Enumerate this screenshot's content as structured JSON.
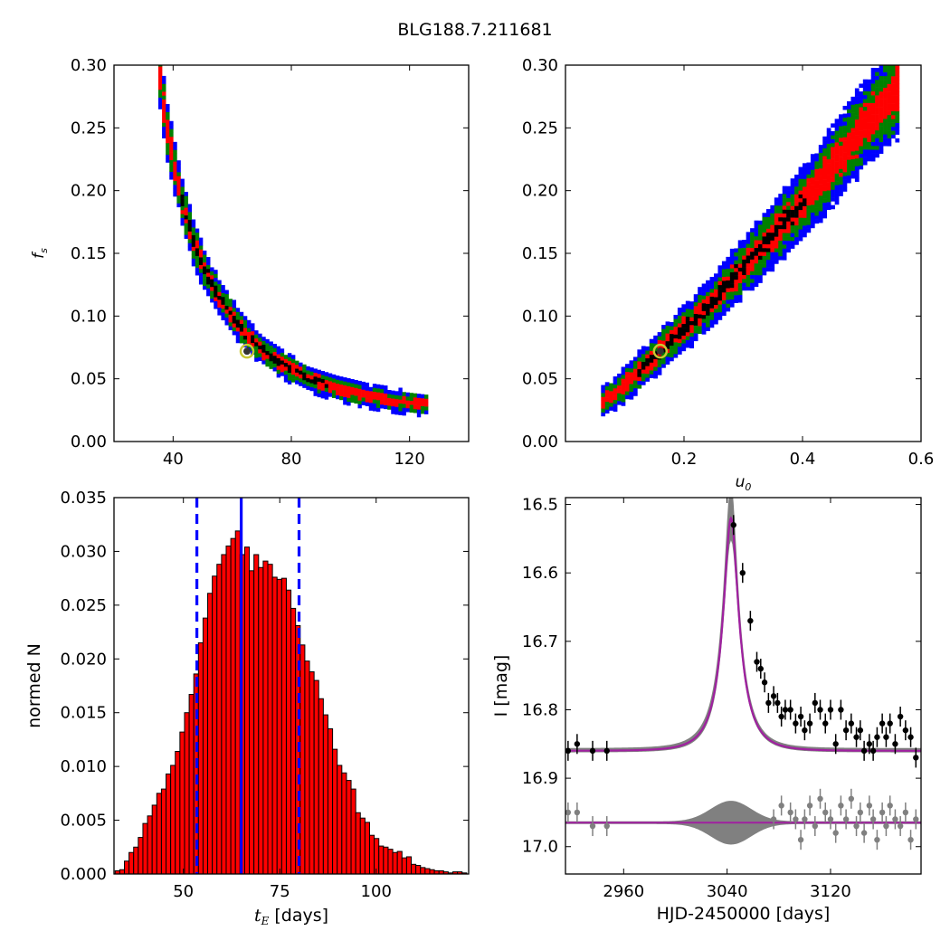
{
  "figure": {
    "title": "BLG188.7.211681"
  },
  "chart_data": [
    {
      "id": "fs_vs_tE",
      "type": "heatmap",
      "xlabel": "",
      "ylabel": "f_s",
      "xlim": [
        20,
        140
      ],
      "ylim": [
        0.0,
        0.3
      ],
      "xticks": [
        40,
        80,
        120
      ],
      "yticks": [
        "0.00",
        "0.05",
        "0.10",
        "0.15",
        "0.20",
        "0.25",
        "0.30"
      ],
      "colors": {
        "1sigma": "#000000",
        "2sigma": "#ff0000",
        "3sigma": "#008000",
        "outer": "#0000ff"
      },
      "best_fit": {
        "x": 65,
        "y": 0.072
      },
      "ridge": [
        [
          35,
          0.29
        ],
        [
          37,
          0.25
        ],
        [
          40,
          0.215
        ],
        [
          43,
          0.185
        ],
        [
          46,
          0.16
        ],
        [
          50,
          0.135
        ],
        [
          55,
          0.113
        ],
        [
          60,
          0.096
        ],
        [
          65,
          0.082
        ],
        [
          70,
          0.071
        ],
        [
          78,
          0.058
        ],
        [
          85,
          0.049
        ],
        [
          95,
          0.041
        ],
        [
          105,
          0.035
        ],
        [
          115,
          0.031
        ],
        [
          125,
          0.028
        ]
      ]
    },
    {
      "id": "fs_vs_u0",
      "type": "heatmap",
      "xlabel": "u_0",
      "ylabel": "",
      "xlim": [
        0.0,
        0.6
      ],
      "ylim": [
        0.0,
        0.3
      ],
      "xticks": [
        "0.2",
        "0.4",
        "0.6"
      ],
      "yticks": [
        "0.00",
        "0.05",
        "0.10",
        "0.15",
        "0.20",
        "0.25",
        "0.30"
      ],
      "colors": {
        "1sigma": "#000000",
        "2sigma": "#ff0000",
        "3sigma": "#008000",
        "outer": "#0000ff"
      },
      "best_fit": {
        "x": 0.16,
        "y": 0.072
      },
      "ridge": [
        [
          0.06,
          0.03
        ],
        [
          0.1,
          0.045
        ],
        [
          0.15,
          0.068
        ],
        [
          0.2,
          0.09
        ],
        [
          0.25,
          0.112
        ],
        [
          0.3,
          0.14
        ],
        [
          0.35,
          0.165
        ],
        [
          0.4,
          0.19
        ],
        [
          0.45,
          0.22
        ],
        [
          0.5,
          0.25
        ],
        [
          0.56,
          0.28
        ]
      ]
    },
    {
      "id": "tE_hist",
      "type": "bar",
      "xlabel": "t_E [days]",
      "ylabel": "normed N",
      "xlim": [
        32,
        124
      ],
      "ylim": [
        0.0,
        0.035
      ],
      "xticks": [
        "50",
        "75",
        "100"
      ],
      "yticks": [
        "0.000",
        "0.005",
        "0.010",
        "0.015",
        "0.020",
        "0.025",
        "0.030",
        "0.035"
      ],
      "bin_width": 1.2,
      "bin_start": 32.3,
      "values": [
        0.0003,
        0.0004,
        0.0012,
        0.002,
        0.0025,
        0.0034,
        0.0047,
        0.0054,
        0.0064,
        0.0075,
        0.0079,
        0.0093,
        0.0101,
        0.0114,
        0.0132,
        0.015,
        0.0167,
        0.0186,
        0.0215,
        0.0238,
        0.0261,
        0.0277,
        0.0288,
        0.0297,
        0.0305,
        0.0312,
        0.0319,
        0.0297,
        0.0304,
        0.0282,
        0.0297,
        0.0285,
        0.0291,
        0.0288,
        0.0276,
        0.0274,
        0.0275,
        0.0264,
        0.0247,
        0.0231,
        0.0213,
        0.0198,
        0.0188,
        0.018,
        0.0163,
        0.0148,
        0.0135,
        0.0116,
        0.0101,
        0.0094,
        0.0087,
        0.0079,
        0.0057,
        0.0052,
        0.0048,
        0.0036,
        0.0033,
        0.0026,
        0.0025,
        0.0023,
        0.002,
        0.0021,
        0.0015,
        0.0016,
        0.0009,
        0.0008,
        0.0006,
        0.0005,
        0.0004,
        0.0003,
        0.0003,
        0.0002,
        0.0001,
        0.0002,
        0.0002,
        0.0001
      ],
      "bar_color": "#ff0000",
      "vlines": [
        {
          "x": 65,
          "style": "solid",
          "color": "#0000ff"
        },
        {
          "x": 53.5,
          "style": "dashed",
          "color": "#0000ff"
        },
        {
          "x": 80,
          "style": "dashed",
          "color": "#0000ff"
        }
      ]
    },
    {
      "id": "lightcurve",
      "type": "scatter",
      "xlabel": "HJD-2450000 [days]",
      "ylabel": "I [mag]",
      "xlim": [
        2915,
        3190
      ],
      "ylim": [
        17.04,
        16.49
      ],
      "xticks": [
        "2960",
        "3040",
        "3120"
      ],
      "yticks": [
        "16.5",
        "16.6",
        "16.7",
        "16.8",
        "16.9",
        "17.0"
      ],
      "model": {
        "baseline": 16.86,
        "peak": 16.52,
        "t0": 3043,
        "tE": 19,
        "color": "#a020a0"
      },
      "residual_baseline": 16.965,
      "band_color": "#808080",
      "data_points": [
        [
          2917,
          16.86
        ],
        [
          2924,
          16.85
        ],
        [
          2936,
          16.86
        ],
        [
          2947,
          16.86
        ],
        [
          3045,
          16.53
        ],
        [
          3052,
          16.6
        ],
        [
          3058,
          16.67
        ],
        [
          3063,
          16.73
        ],
        [
          3066,
          16.74
        ],
        [
          3069,
          16.76
        ],
        [
          3072,
          16.79
        ],
        [
          3076,
          16.78
        ],
        [
          3079,
          16.79
        ],
        [
          3082,
          16.81
        ],
        [
          3085,
          16.8
        ],
        [
          3089,
          16.8
        ],
        [
          3093,
          16.82
        ],
        [
          3097,
          16.81
        ],
        [
          3100,
          16.83
        ],
        [
          3104,
          16.82
        ],
        [
          3108,
          16.79
        ],
        [
          3112,
          16.8
        ],
        [
          3116,
          16.82
        ],
        [
          3120,
          16.8
        ],
        [
          3124,
          16.85
        ],
        [
          3128,
          16.8
        ],
        [
          3132,
          16.83
        ],
        [
          3136,
          16.82
        ],
        [
          3140,
          16.84
        ],
        [
          3143,
          16.83
        ],
        [
          3146,
          16.86
        ],
        [
          3150,
          16.85
        ],
        [
          3153,
          16.86
        ],
        [
          3156,
          16.84
        ],
        [
          3160,
          16.82
        ],
        [
          3163,
          16.84
        ],
        [
          3166,
          16.82
        ],
        [
          3170,
          16.85
        ],
        [
          3174,
          16.81
        ],
        [
          3178,
          16.83
        ],
        [
          3182,
          16.84
        ],
        [
          3186,
          16.87
        ]
      ],
      "residual_points": [
        [
          2917,
          16.95
        ],
        [
          2924,
          16.95
        ],
        [
          2936,
          16.97
        ],
        [
          2947,
          16.97
        ],
        [
          3076,
          16.96
        ],
        [
          3082,
          16.94
        ],
        [
          3089,
          16.95
        ],
        [
          3093,
          16.96
        ],
        [
          3097,
          16.99
        ],
        [
          3100,
          16.96
        ],
        [
          3104,
          16.94
        ],
        [
          3108,
          16.97
        ],
        [
          3112,
          16.93
        ],
        [
          3116,
          16.95
        ],
        [
          3120,
          16.96
        ],
        [
          3124,
          16.98
        ],
        [
          3128,
          16.94
        ],
        [
          3132,
          16.96
        ],
        [
          3136,
          16.93
        ],
        [
          3140,
          16.97
        ],
        [
          3143,
          16.95
        ],
        [
          3146,
          16.98
        ],
        [
          3150,
          16.94
        ],
        [
          3153,
          16.96
        ],
        [
          3156,
          16.99
        ],
        [
          3160,
          16.95
        ],
        [
          3163,
          16.97
        ],
        [
          3166,
          16.94
        ],
        [
          3170,
          16.96
        ],
        [
          3174,
          16.97
        ],
        [
          3178,
          16.95
        ],
        [
          3182,
          16.99
        ],
        [
          3186,
          16.96
        ]
      ]
    }
  ]
}
